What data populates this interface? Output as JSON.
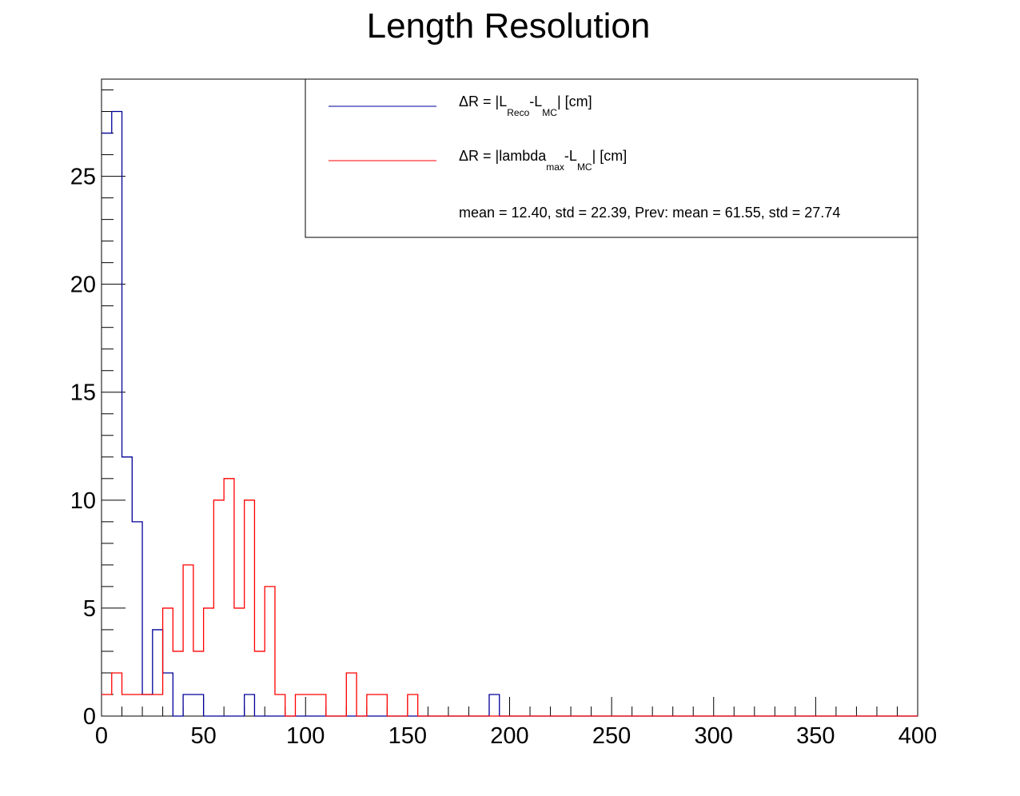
{
  "chart_data": {
    "type": "histogram",
    "title": "Length Resolution",
    "xlabel": "",
    "ylabel": "",
    "xlim": [
      0,
      400
    ],
    "ylim": [
      0,
      29.5
    ],
    "bin_width": 5,
    "x_ticks": [
      "0",
      "50",
      "100",
      "150",
      "200",
      "250",
      "300",
      "350",
      "400"
    ],
    "y_ticks": [
      "0",
      "5",
      "10",
      "15",
      "20",
      "25"
    ],
    "series": [
      {
        "color": "#000099",
        "legend_parts": [
          {
            "t": "ΔR = |L"
          },
          {
            "t": "Reco",
            "sub": true
          },
          {
            "t": "-L"
          },
          {
            "t": "MC",
            "sub": true
          },
          {
            "t": "| [cm]"
          }
        ],
        "counts": [
          27,
          28,
          12,
          9,
          1,
          4,
          2,
          0,
          1,
          1,
          0,
          0,
          0,
          0,
          1,
          0,
          0,
          0,
          0,
          0,
          0,
          0,
          0,
          0,
          0,
          0,
          0,
          0,
          0,
          0,
          0,
          0,
          0,
          0,
          0,
          0,
          0,
          0,
          1,
          0
        ]
      },
      {
        "color": "#ff0000",
        "legend_parts": [
          {
            "t": "ΔR = |lambda"
          },
          {
            "t": "max",
            "sub": true
          },
          {
            "t": "-L"
          },
          {
            "t": "MC",
            "sub": true
          },
          {
            "t": "| [cm]"
          }
        ],
        "counts": [
          1,
          2,
          1,
          1,
          1,
          1,
          5,
          3,
          7,
          3,
          5,
          10,
          11,
          5,
          10,
          3,
          6,
          1,
          0,
          1,
          1,
          1,
          0,
          0,
          2,
          0,
          1,
          1,
          0,
          0,
          1,
          0
        ]
      }
    ],
    "stats_text": "mean = 12.40, std = 22.39, Prev: mean = 61.55, std = 27.74",
    "legend_position": "top-right"
  }
}
